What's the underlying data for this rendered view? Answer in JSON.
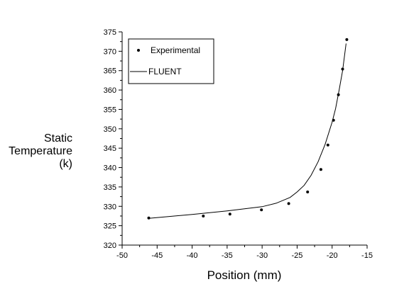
{
  "chart_data": {
    "type": "line",
    "title": "",
    "xlabel": "Position (mm)",
    "ylabel_lines": [
      "Static",
      "Temperature",
      "(k)"
    ],
    "xlim": [
      -50,
      -15
    ],
    "ylim": [
      320,
      375
    ],
    "x_ticks": [
      -50,
      -45,
      -40,
      -35,
      -30,
      -25,
      -20,
      -15
    ],
    "y_ticks": [
      320,
      325,
      330,
      335,
      340,
      345,
      350,
      355,
      360,
      365,
      370,
      375
    ],
    "grid": false,
    "legend_placement": "top-left",
    "series": [
      {
        "name": "Experimental",
        "kind": "scatter",
        "x": [
          -46.2,
          -38.4,
          -34.6,
          -30.1,
          -26.2,
          -23.5,
          -21.6,
          -20.6,
          -19.8,
          -19.1,
          -18.5,
          -17.9
        ],
        "y": [
          327.0,
          327.5,
          328.0,
          329.1,
          330.7,
          333.7,
          339.5,
          345.8,
          352.2,
          358.8,
          365.4,
          373.0
        ]
      },
      {
        "name": "FLUENT",
        "kind": "line",
        "x": [
          -46.2,
          -40,
          -35,
          -30,
          -28,
          -26,
          -25,
          -24,
          -23,
          -22,
          -21,
          -20,
          -19.5,
          -19,
          -18.5,
          -18
        ],
        "y": [
          326.9,
          327.9,
          328.8,
          329.9,
          330.8,
          332.3,
          333.7,
          335.4,
          338.0,
          341.5,
          346.0,
          351.7,
          355.2,
          360.0,
          365.0,
          372.0
        ]
      }
    ],
    "colors": {
      "marker": "#000000",
      "line": "#000000",
      "axis": "#000000"
    }
  }
}
